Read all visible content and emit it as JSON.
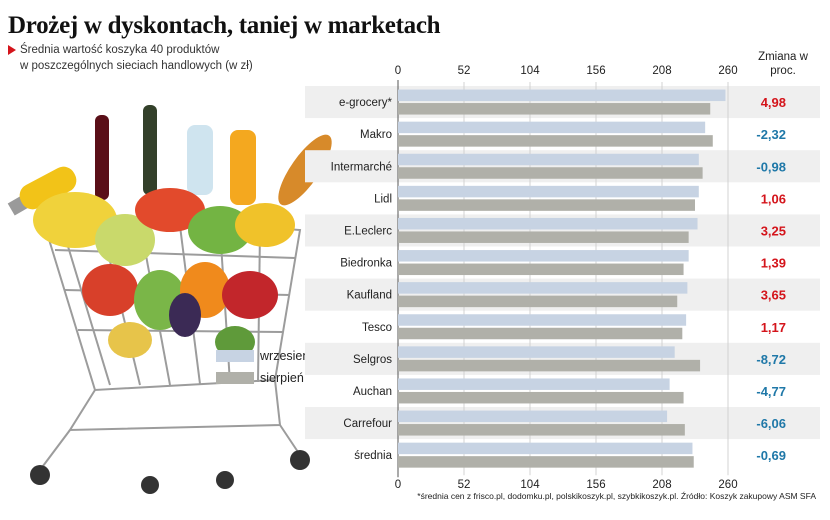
{
  "title": "Drożej w dyskontach, taniej w marketach",
  "subtitle": {
    "line1": "Średnia wartość koszyka 40 produktów",
    "line2": "w poszczególnych sieciach handlowych (w zł)"
  },
  "change_header": "Zmiana w proc.",
  "legend": {
    "current": "wrzesień",
    "previous": "sierpień"
  },
  "source_note": "*średnia cen z frisco.pl, dodomku.pl, polskikoszyk.pl, szybkikoszyk.pl. Źródło: Koszyk zakupowy ASM SFA",
  "colors": {
    "current_bar": "#c7d3e3",
    "previous_bar": "#b0b0a9",
    "positive_change": "#d4141b",
    "negative_change": "#1f78a8",
    "row_stripe": "#efefef",
    "marker": "#d4141b"
  },
  "chart_data": {
    "type": "bar",
    "orientation": "horizontal",
    "xlim": [
      0,
      260
    ],
    "ticks": [
      "0",
      "52",
      "104",
      "156",
      "208",
      "260"
    ],
    "grid": true,
    "categories": [
      "e-grocery*",
      "Makro",
      "Intermarché",
      "Lidl",
      "E.Leclerc",
      "Biedronka",
      "Kaufland",
      "Tesco",
      "Selgros",
      "Auchan",
      "Carrefour",
      "średnia"
    ],
    "series": [
      {
        "name": "wrzesień",
        "values": [
          258,
          242,
          237,
          237,
          236,
          229,
          228,
          227,
          218,
          214,
          212,
          232
        ]
      },
      {
        "name": "sierpień",
        "values": [
          246,
          248,
          240,
          234,
          229,
          225,
          220,
          224,
          238,
          225,
          226,
          233
        ]
      }
    ],
    "changes": [
      "4,98",
      "-2,32",
      "-0,98",
      "1,06",
      "3,25",
      "1,39",
      "3,65",
      "1,17",
      "-8,72",
      "-4,77",
      "-6,06",
      "-0,69"
    ]
  }
}
